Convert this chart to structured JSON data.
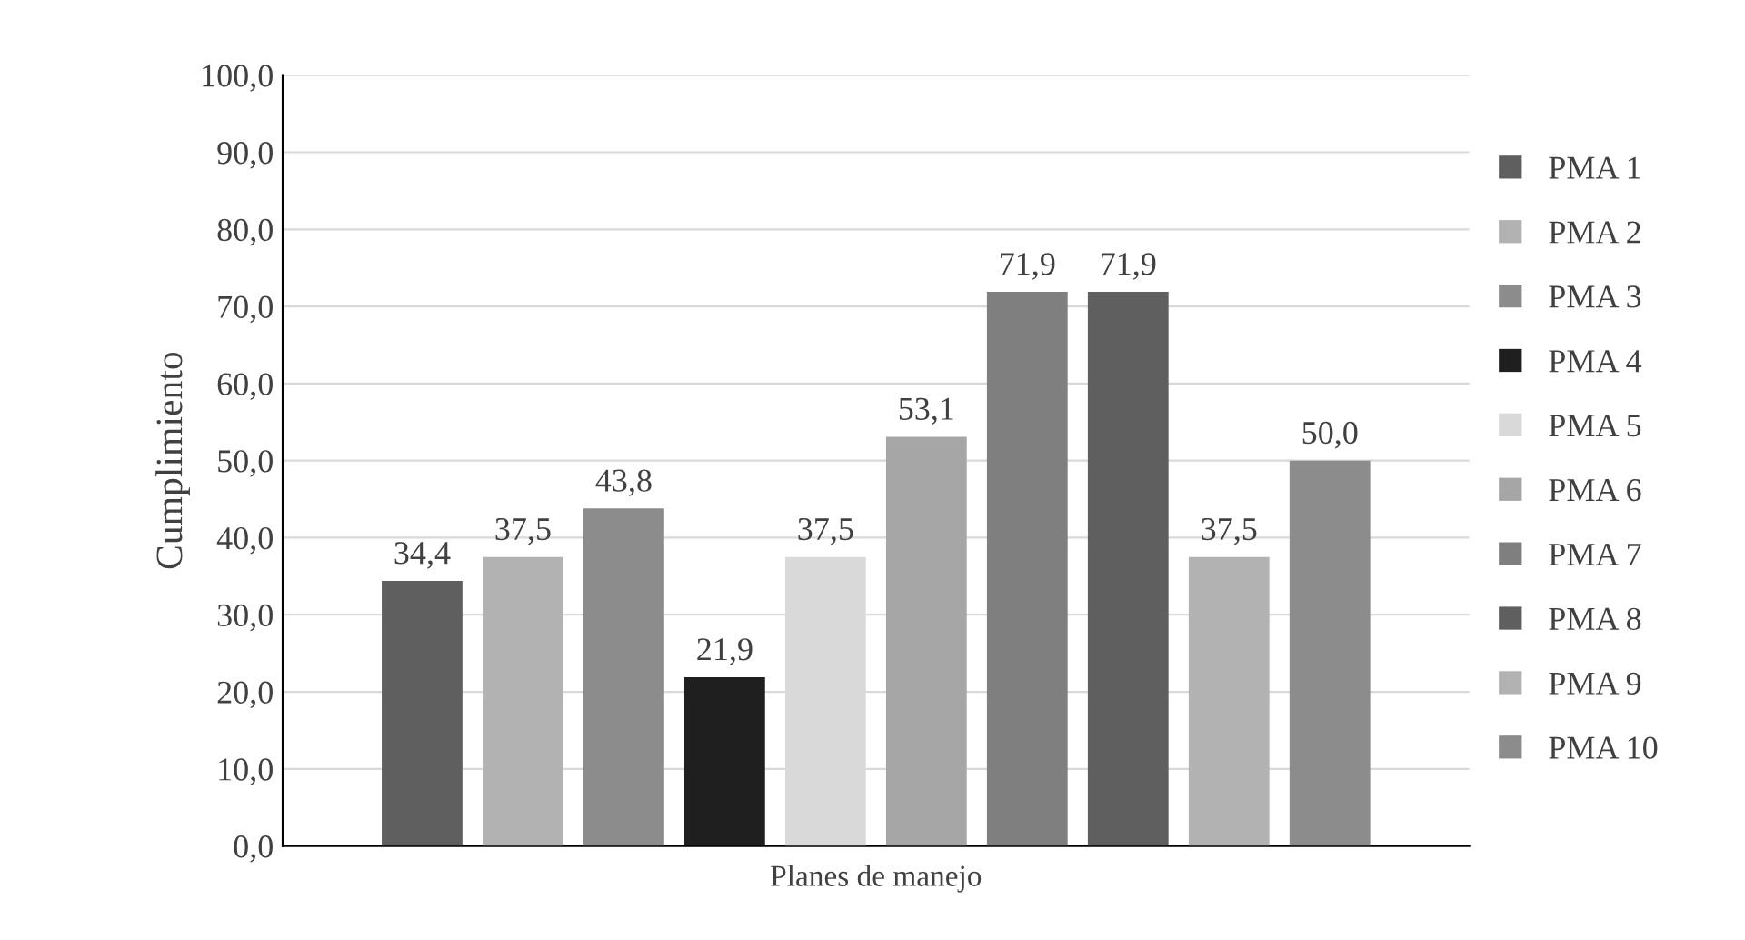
{
  "chart_data": {
    "type": "bar",
    "ylabel": "Cumplimiento",
    "xlabel": "Planes de manejo",
    "categories": [
      null
    ],
    "ylim": [
      0,
      100
    ],
    "yticks": [
      {
        "value": 0,
        "label": "0,0"
      },
      {
        "value": 10,
        "label": "10,0"
      },
      {
        "value": 20,
        "label": "20,0"
      },
      {
        "value": 30,
        "label": "30,0"
      },
      {
        "value": 40,
        "label": "40,0"
      },
      {
        "value": 50,
        "label": "50,0"
      },
      {
        "value": 60,
        "label": "60,0"
      },
      {
        "value": 70,
        "label": "70,0"
      },
      {
        "value": 80,
        "label": "80,0"
      },
      {
        "value": 90,
        "label": "90,0"
      },
      {
        "value": 100,
        "label": "100,0"
      }
    ],
    "grid": "y",
    "legend": "right",
    "series": [
      {
        "name": "PMA 1",
        "color": "#5f5f5f",
        "values": [
          34.4
        ],
        "value_labels": [
          "34,4"
        ]
      },
      {
        "name": "PMA 2",
        "color": "#b2b2b2",
        "values": [
          37.5
        ],
        "value_labels": [
          "37,5"
        ]
      },
      {
        "name": "PMA 3",
        "color": "#8c8c8c",
        "values": [
          43.8
        ],
        "value_labels": [
          "43,8"
        ]
      },
      {
        "name": "PMA 4",
        "color": "#1f1f1f",
        "values": [
          21.9
        ],
        "value_labels": [
          "21,9"
        ]
      },
      {
        "name": "PMA 5",
        "color": "#d9d9d9",
        "values": [
          37.5
        ],
        "value_labels": [
          "37,5"
        ]
      },
      {
        "name": "PMA 6",
        "color": "#a6a6a6",
        "values": [
          53.1
        ],
        "value_labels": [
          "53,1"
        ]
      },
      {
        "name": "PMA 7",
        "color": "#7f7f7f",
        "values": [
          71.9
        ],
        "value_labels": [
          "71,9"
        ]
      },
      {
        "name": "PMA 8",
        "color": "#5f5f5f",
        "values": [
          71.9
        ],
        "value_labels": [
          "71,9"
        ]
      },
      {
        "name": "PMA 9",
        "color": "#b2b2b2",
        "values": [
          37.5
        ],
        "value_labels": [
          "37,5"
        ]
      },
      {
        "name": "PMA 10",
        "color": "#8c8c8c",
        "values": [
          50.0
        ],
        "value_labels": [
          "50,0"
        ]
      }
    ]
  }
}
